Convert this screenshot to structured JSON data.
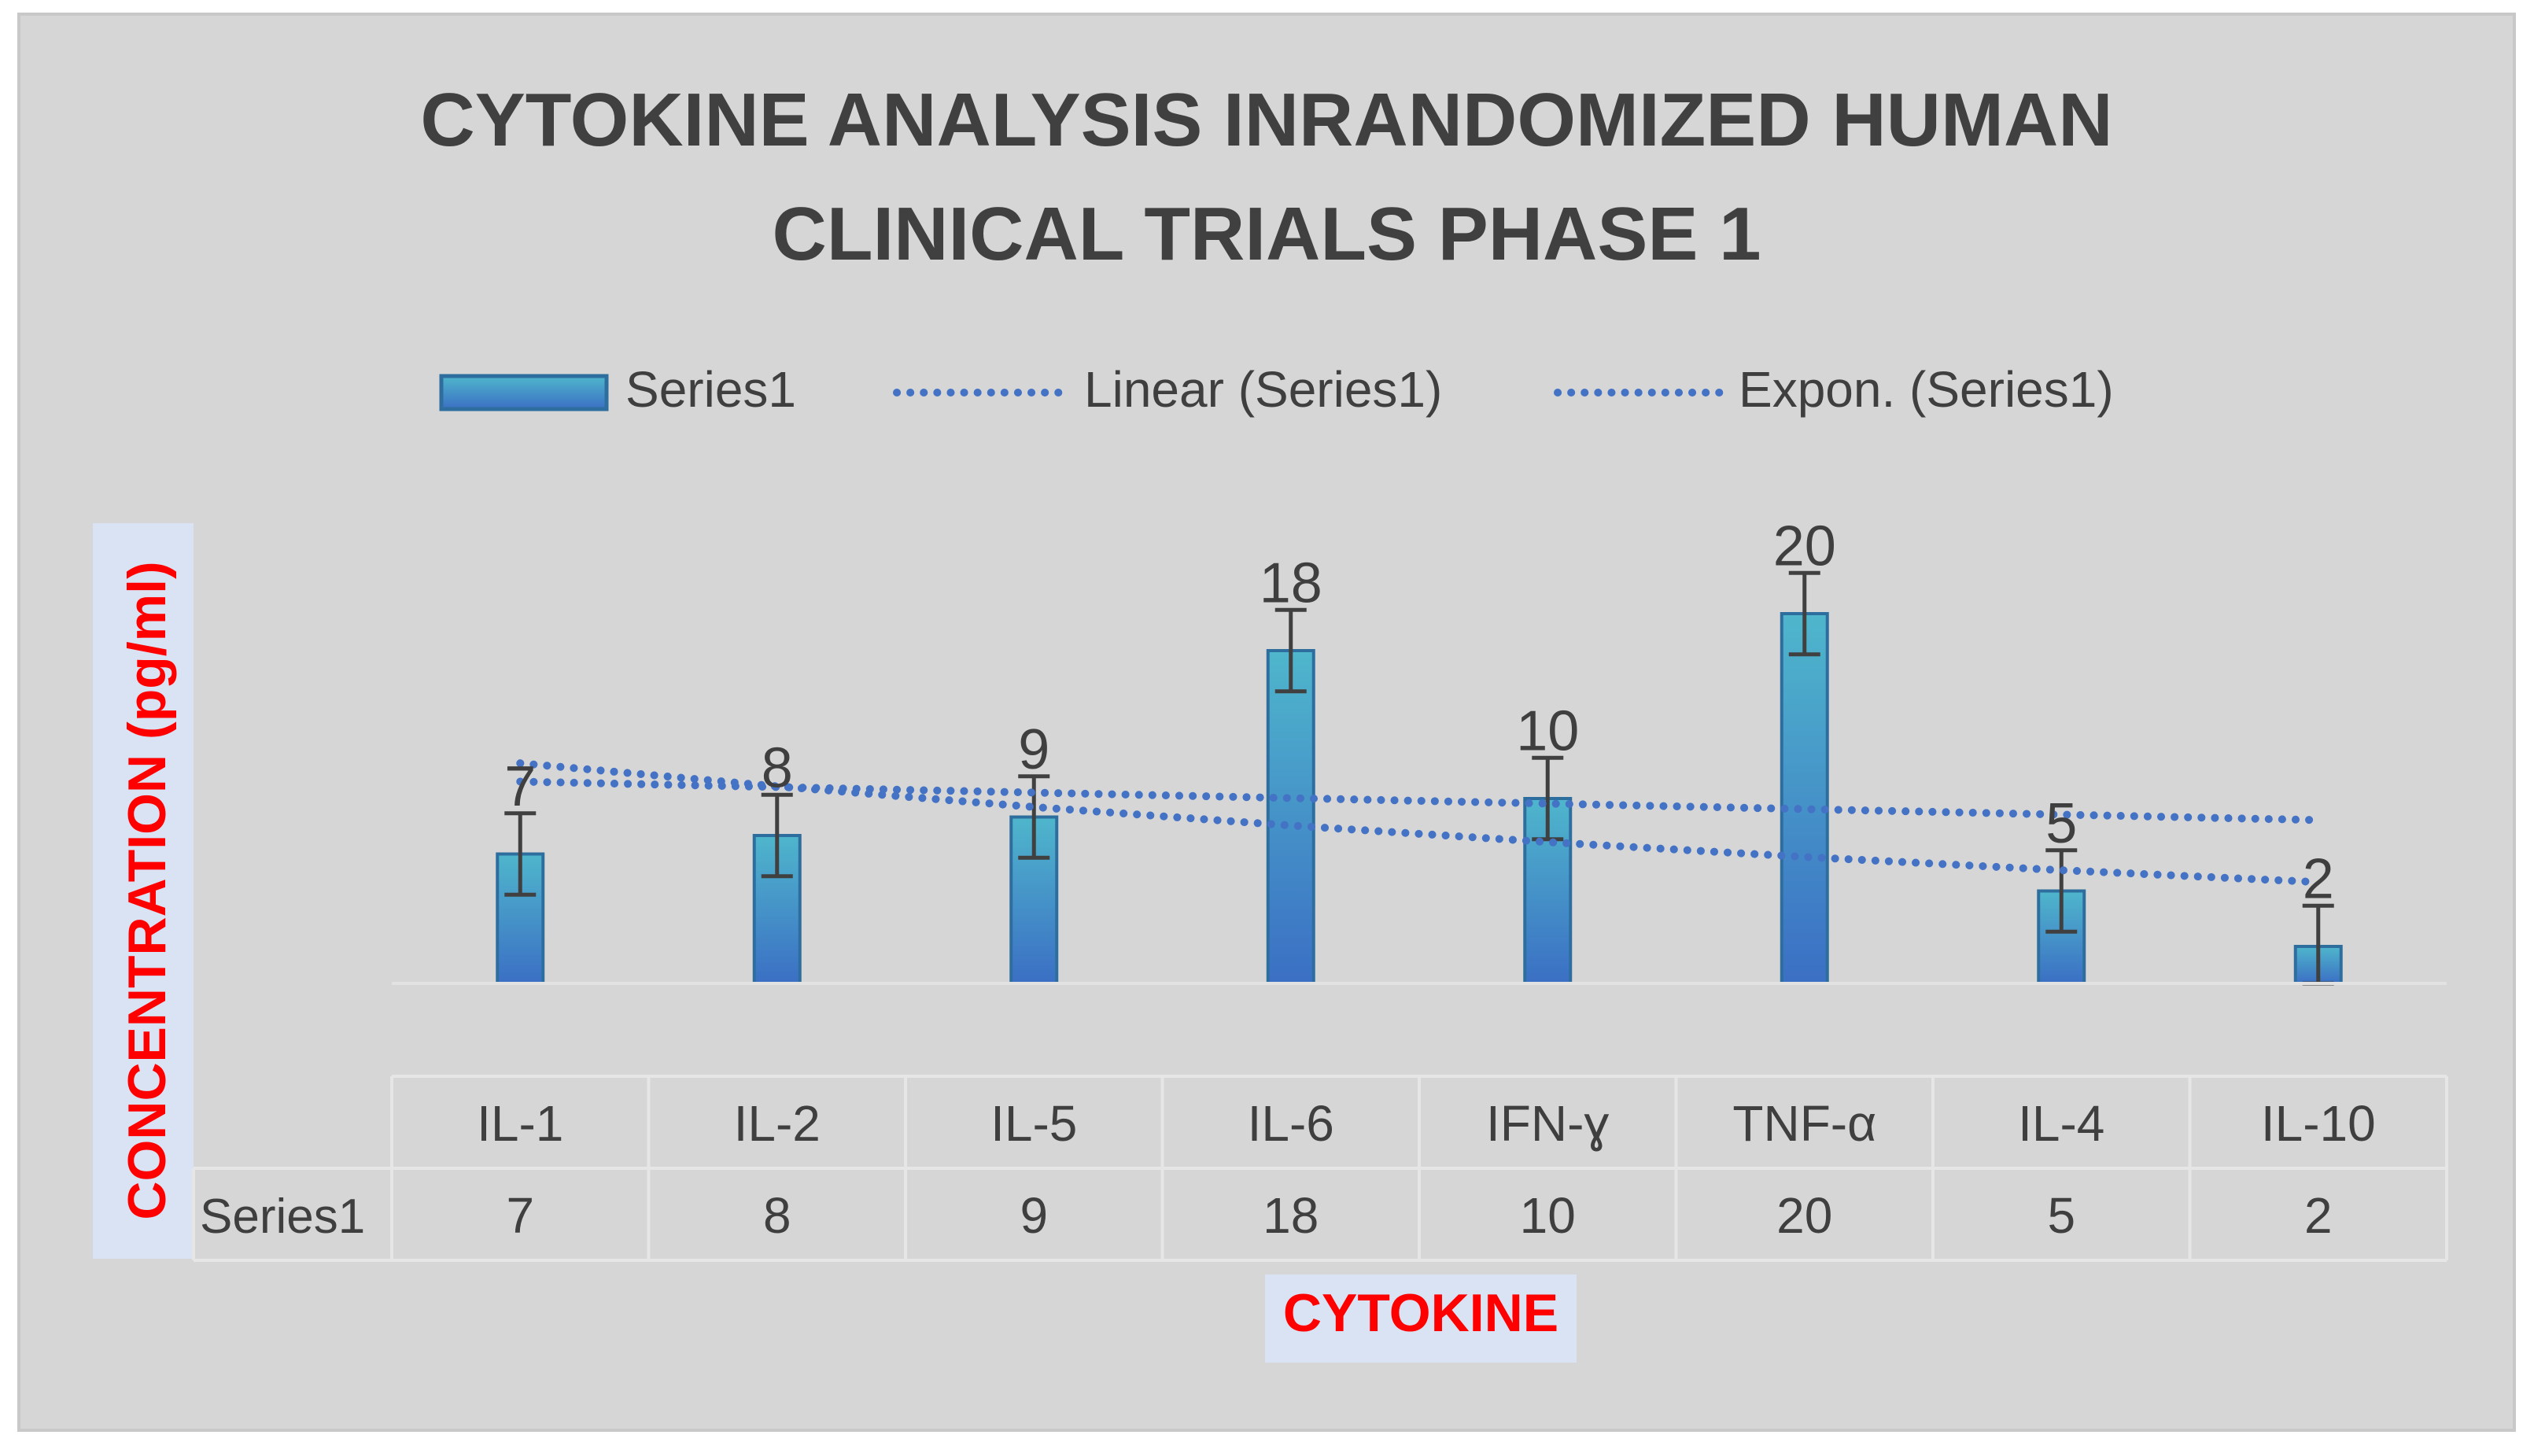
{
  "chart_data": {
    "type": "bar",
    "title": "CYTOKINE ANALYSIS INRANDOMIZED HUMAN CLINICAL TRIALS PHASE 1",
    "title_lines": [
      "CYTOKINE ANALYSIS INRANDOMIZED HUMAN",
      "CLINICAL TRIALS PHASE 1"
    ],
    "xlabel": "CYTOKINE",
    "ylabel": "CONCENTRATION (pg/ml)",
    "categories": [
      "IL-1",
      "IL-2",
      "IL-5",
      "IL-6",
      "IFN-ɣ",
      "TNF-α",
      "IL-4",
      "IL-10"
    ],
    "series": [
      {
        "name": "Series1",
        "values": [
          7,
          8,
          9,
          18,
          10,
          20,
          5,
          2
        ]
      }
    ],
    "error_bar": 2.2,
    "trendlines": [
      {
        "name": "Linear (Series1)",
        "type": "linear"
      },
      {
        "name": "Expon. (Series1)",
        "type": "exponential"
      }
    ],
    "legend": [
      "Series1",
      "Linear (Series1)",
      "Expon. (Series1)"
    ],
    "legend_position": "top",
    "data_table": {
      "row_label": "Series1",
      "values": [
        "7",
        "8",
        "9",
        "18",
        "10",
        "20",
        "5",
        "2"
      ]
    },
    "ylim": [
      0,
      25
    ],
    "grid": false
  },
  "colors": {
    "background": "#d6d6d6",
    "plot_bg": "#d0cece",
    "bar_top": "#4fb6cc",
    "bar_bottom": "#3b6fc4",
    "bar_border": "#2e6e9e",
    "trendline": "#4472c4",
    "title": "#404040",
    "text": "#3f3f3f",
    "axis_title": "#ff0000",
    "axis_title_bg": "#dae3f3",
    "table_line": "#e6e6e6",
    "error_bar": "#404040"
  }
}
